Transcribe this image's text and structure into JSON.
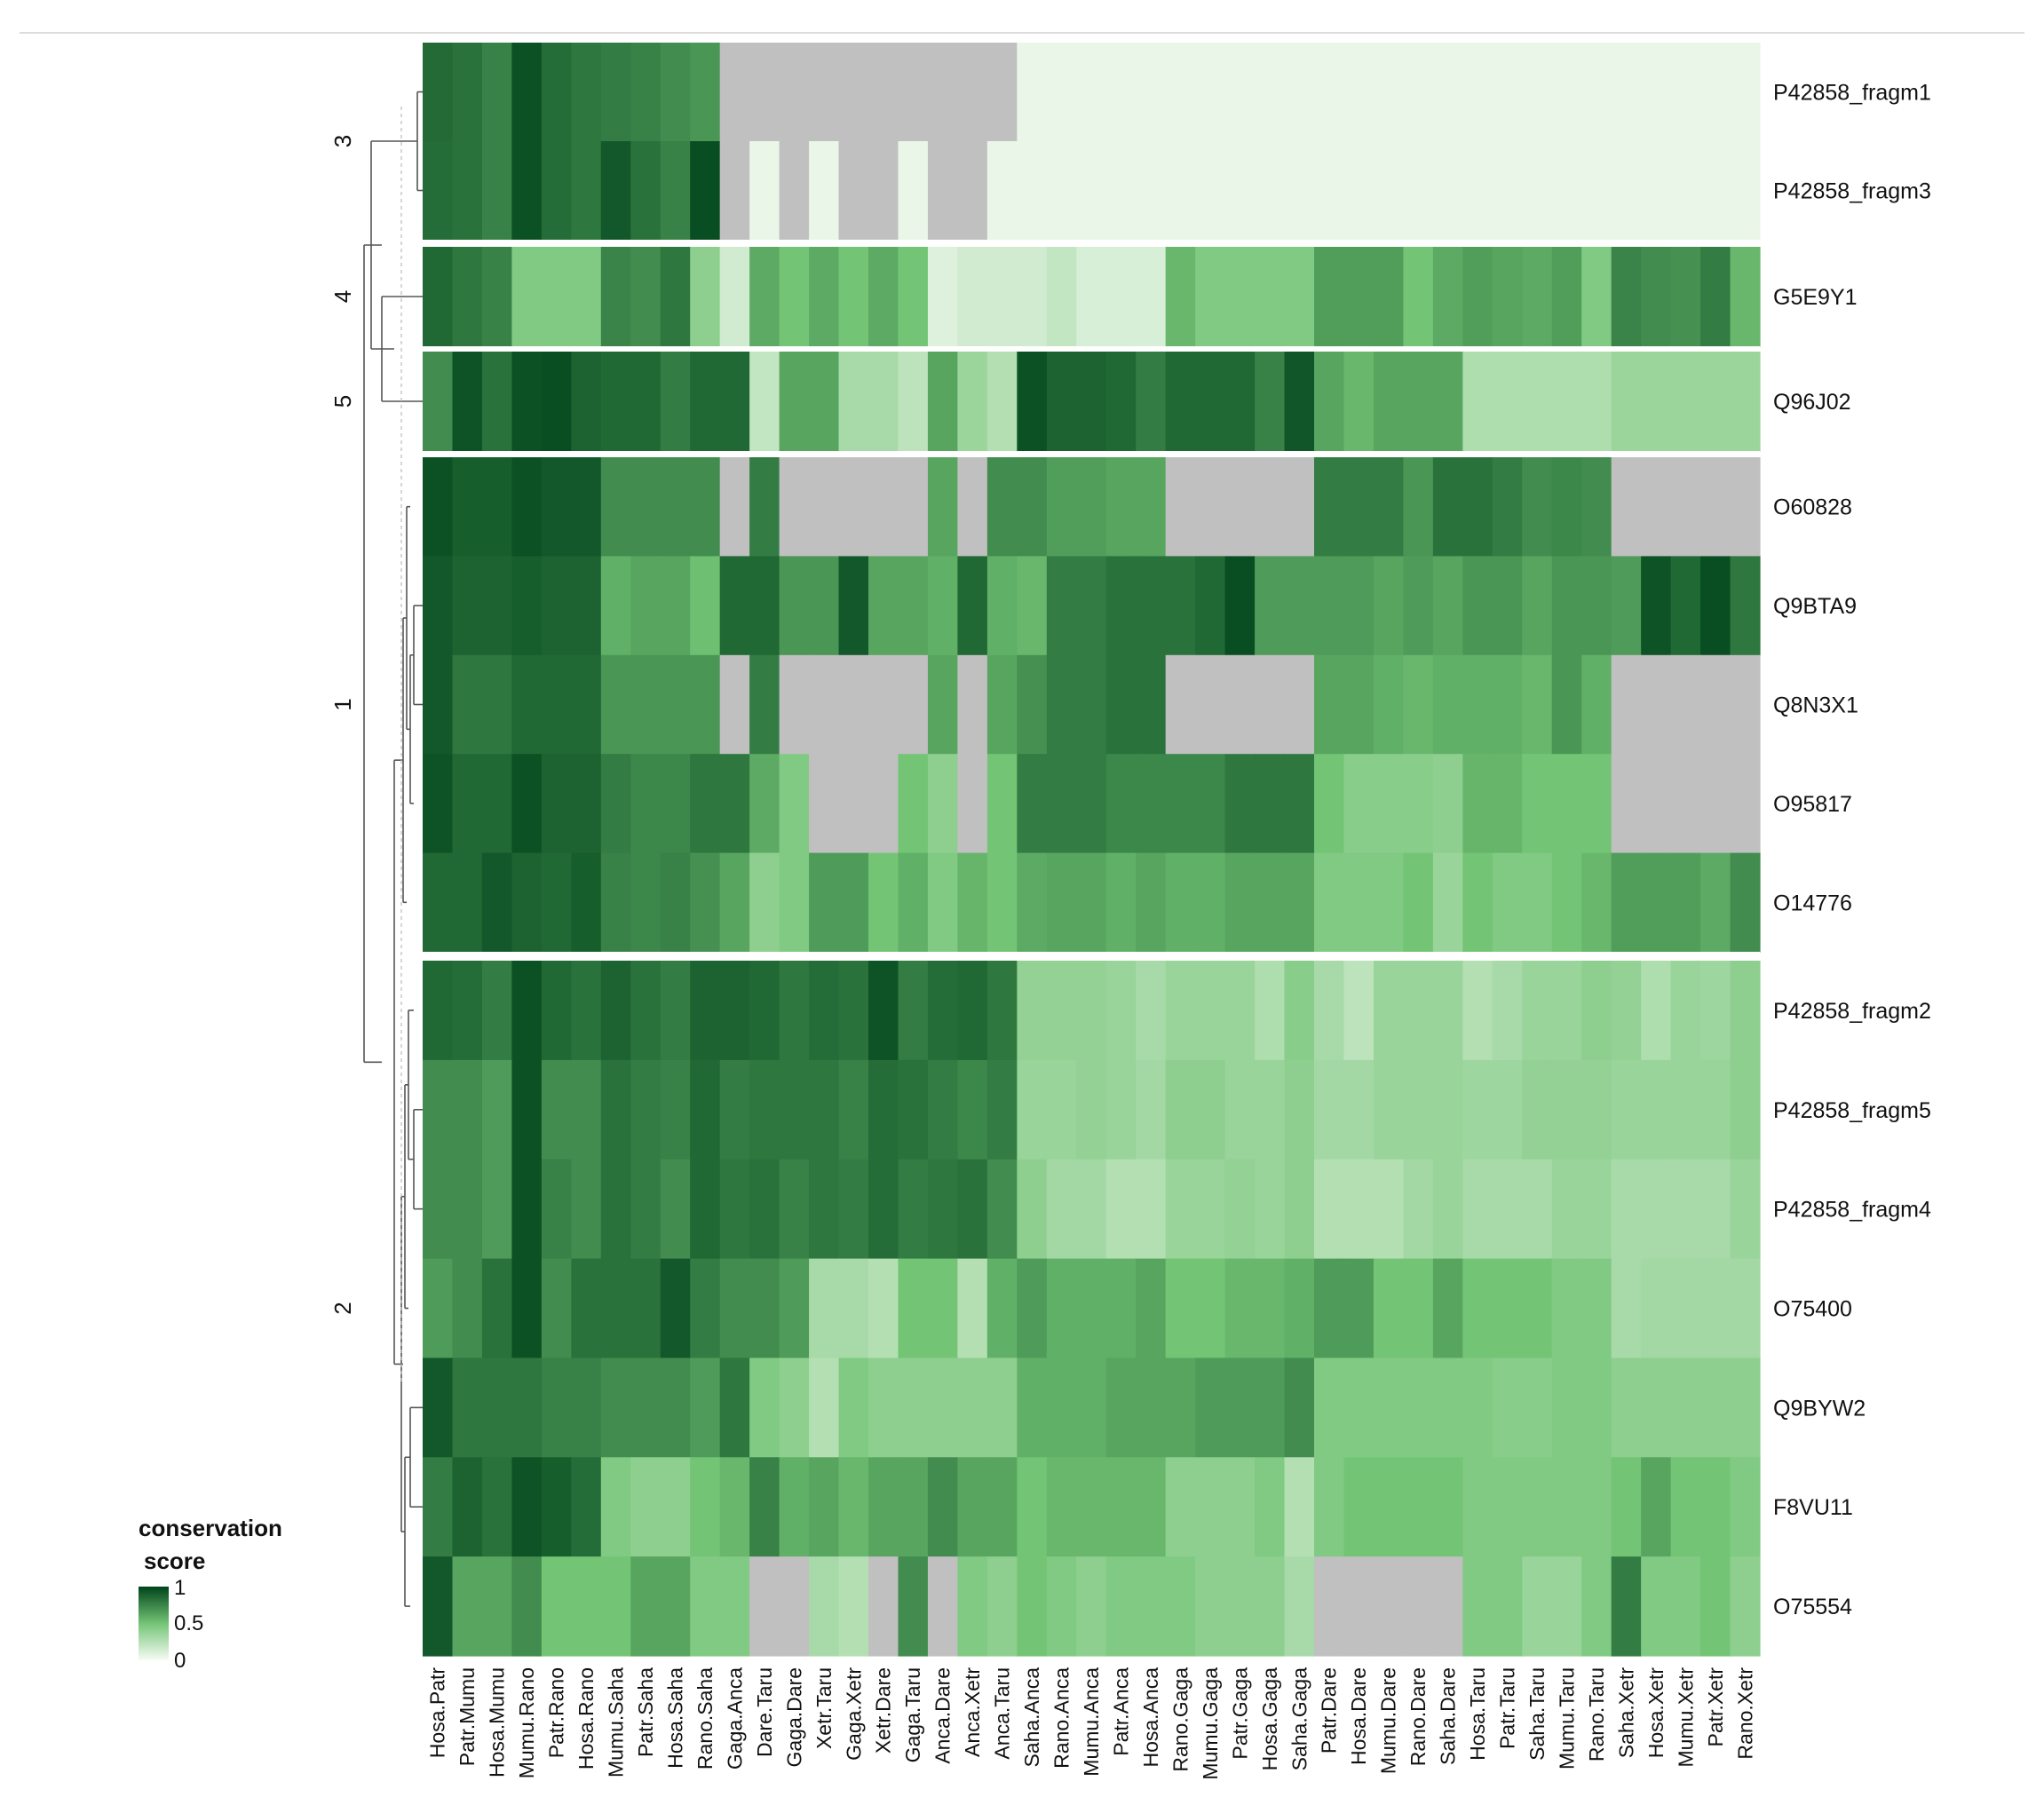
{
  "chart_data": {
    "type": "heatmap",
    "title": "",
    "xlabel": "",
    "ylabel": "",
    "na_color": "#c0c0c0",
    "color_scale": {
      "low": "#f7fcf5",
      "mid": "#74c476",
      "high": "#00441b"
    },
    "legend": {
      "title_line1": "conservation",
      "title_line2": "score",
      "ticks": [
        "1",
        "0.5",
        "0"
      ],
      "position": "bottom-left"
    },
    "columns": [
      "Hosa.Patr",
      "Patr.Mumu",
      "Hosa.Mumu",
      "Mumu.Rano",
      "Patr.Rano",
      "Hosa.Rano",
      "Mumu.Saha",
      "Patr.Saha",
      "Hosa.Saha",
      "Rano.Saha",
      "Gaga.Anca",
      "Dare.Taru",
      "Gaga.Dare",
      "Xetr.Taru",
      "Gaga.Xetr",
      "Xetr.Dare",
      "Gaga.Taru",
      "Anca.Dare",
      "Anca.Xetr",
      "Anca.Taru",
      "Saha.Anca",
      "Rano.Anca",
      "Mumu.Anca",
      "Patr.Anca",
      "Hosa.Anca",
      "Rano.Gaga",
      "Mumu.Gaga",
      "Patr.Gaga",
      "Hosa.Gaga",
      "Saha.Gaga",
      "Patr.Dare",
      "Hosa.Dare",
      "Mumu.Dare",
      "Rano.Dare",
      "Saha.Dare",
      "Hosa.Taru",
      "Patr.Taru",
      "Saha.Taru",
      "Mumu.Taru",
      "Rano.Taru",
      "Saha.Xetr",
      "Hosa.Xetr",
      "Mumu.Xetr",
      "Patr.Xetr",
      "Rano.Xetr"
    ],
    "row_clusters": [
      {
        "label": "3",
        "rows": [
          {
            "name": "P42858_fragm1",
            "values": [
              0.85,
              0.82,
              0.76,
              0.95,
              0.84,
              0.8,
              0.78,
              0.76,
              0.72,
              0.68,
              null,
              null,
              null,
              null,
              null,
              null,
              null,
              null,
              null,
              null,
              0.05,
              0.05,
              0.05,
              0.05,
              0.05,
              0.05,
              0.05,
              0.05,
              0.05,
              0.05,
              0.05,
              0.05,
              0.05,
              0.05,
              0.05,
              0.05,
              0.05,
              0.05,
              0.05,
              0.05,
              0.05,
              0.05,
              0.05,
              0.05,
              0.05
            ]
          },
          {
            "name": "P42858_fragm3",
            "values": [
              0.84,
              0.82,
              0.76,
              0.95,
              0.84,
              0.8,
              0.92,
              0.82,
              0.76,
              0.96,
              null,
              0.05,
              null,
              0.05,
              null,
              null,
              0.05,
              null,
              null,
              0.05,
              0.05,
              0.05,
              0.05,
              0.05,
              0.05,
              0.05,
              0.05,
              0.05,
              0.05,
              0.05,
              0.05,
              0.05,
              0.05,
              0.05,
              0.05,
              0.05,
              0.05,
              0.05,
              0.05,
              0.05,
              0.05,
              0.05,
              0.05,
              0.05,
              0.05
            ]
          }
        ]
      },
      {
        "label": "4",
        "rows": [
          {
            "name": "G5E9Y1",
            "values": [
              0.86,
              0.8,
              0.76,
              0.45,
              0.45,
              0.45,
              0.75,
              0.72,
              0.8,
              0.4,
              0.15,
              0.6,
              0.5,
              0.6,
              0.5,
              0.6,
              0.5,
              0.1,
              0.15,
              0.15,
              0.15,
              0.2,
              0.12,
              0.12,
              0.12,
              0.55,
              0.45,
              0.45,
              0.45,
              0.45,
              0.65,
              0.65,
              0.65,
              0.5,
              0.6,
              0.65,
              0.62,
              0.6,
              0.65,
              0.45,
              0.75,
              0.72,
              0.7,
              0.78,
              0.55
            ]
          }
        ]
      },
      {
        "label": "5",
        "rows": [
          {
            "name": "Q96J02",
            "values": [
              0.72,
              0.94,
              0.82,
              0.95,
              0.96,
              0.88,
              0.86,
              0.86,
              0.78,
              0.86,
              0.86,
              0.2,
              0.62,
              0.62,
              0.3,
              0.3,
              0.22,
              0.62,
              0.35,
              0.26,
              0.95,
              0.88,
              0.88,
              0.86,
              0.78,
              0.86,
              0.86,
              0.86,
              0.76,
              0.93,
              0.62,
              0.55,
              0.62,
              0.62,
              0.62,
              0.28,
              0.28,
              0.28,
              0.28,
              0.28,
              0.35,
              0.35,
              0.35,
              0.35,
              0.35
            ]
          }
        ]
      },
      {
        "label": "1",
        "rows": [
          {
            "name": "O60828",
            "values": [
              0.95,
              0.9,
              0.9,
              0.95,
              0.92,
              0.92,
              0.72,
              0.72,
              0.72,
              0.72,
              null,
              0.78,
              null,
              null,
              null,
              null,
              null,
              0.62,
              null,
              0.72,
              0.72,
              0.65,
              0.65,
              0.62,
              0.62,
              null,
              null,
              null,
              null,
              null,
              0.78,
              0.78,
              0.78,
              0.68,
              0.82,
              0.82,
              0.78,
              0.72,
              0.74,
              0.72,
              null,
              null,
              null,
              null,
              null
            ]
          },
          {
            "name": "Q9BTA9",
            "values": [
              0.92,
              0.88,
              0.88,
              0.9,
              0.88,
              0.88,
              0.58,
              0.62,
              0.62,
              0.52,
              0.86,
              0.86,
              0.68,
              0.68,
              0.92,
              0.62,
              0.62,
              0.58,
              0.86,
              0.58,
              0.55,
              0.78,
              0.78,
              0.82,
              0.82,
              0.82,
              0.86,
              0.96,
              0.66,
              0.66,
              0.66,
              0.66,
              0.62,
              0.66,
              0.62,
              0.68,
              0.68,
              0.62,
              0.68,
              0.68,
              0.66,
              0.94,
              0.86,
              0.96,
              0.8
            ]
          },
          {
            "name": "Q8N3X1",
            "values": [
              0.92,
              0.8,
              0.8,
              0.86,
              0.86,
              0.86,
              0.68,
              0.68,
              0.68,
              0.68,
              null,
              0.78,
              null,
              null,
              null,
              null,
              null,
              0.62,
              null,
              0.62,
              0.7,
              0.78,
              0.78,
              0.82,
              0.82,
              null,
              null,
              null,
              null,
              null,
              0.62,
              0.62,
              0.58,
              0.55,
              0.58,
              0.58,
              0.58,
              0.55,
              0.68,
              0.58,
              null,
              null,
              null,
              null,
              null
            ]
          },
          {
            "name": "O95817",
            "values": [
              0.94,
              0.86,
              0.86,
              0.95,
              0.88,
              0.88,
              0.78,
              0.74,
              0.74,
              0.8,
              0.8,
              0.6,
              0.45,
              null,
              null,
              null,
              0.5,
              0.4,
              null,
              0.5,
              0.78,
              0.78,
              0.78,
              0.74,
              0.74,
              0.74,
              0.74,
              0.8,
              0.8,
              0.8,
              0.5,
              0.42,
              0.42,
              0.42,
              0.4,
              0.56,
              0.56,
              0.5,
              0.5,
              0.5,
              null,
              null,
              null,
              null,
              null
            ]
          },
          {
            "name": "O14776",
            "values": [
              0.86,
              0.86,
              0.92,
              0.88,
              0.86,
              0.9,
              0.76,
              0.74,
              0.76,
              0.7,
              0.62,
              0.4,
              0.45,
              0.66,
              0.66,
              0.5,
              0.58,
              0.45,
              0.56,
              0.5,
              0.6,
              0.62,
              0.62,
              0.58,
              0.62,
              0.58,
              0.58,
              0.62,
              0.62,
              0.62,
              0.45,
              0.45,
              0.45,
              0.5,
              0.36,
              0.5,
              0.45,
              0.45,
              0.5,
              0.55,
              0.65,
              0.65,
              0.65,
              0.6,
              0.72
            ]
          }
        ]
      },
      {
        "label": "2",
        "rows": [
          {
            "name": "P42858_fragm2",
            "values": [
              0.86,
              0.84,
              0.78,
              0.95,
              0.86,
              0.82,
              0.88,
              0.82,
              0.78,
              0.88,
              0.88,
              0.86,
              0.8,
              0.84,
              0.82,
              0.94,
              0.78,
              0.84,
              0.86,
              0.8,
              0.38,
              0.38,
              0.38,
              0.36,
              0.3,
              0.36,
              0.36,
              0.36,
              0.28,
              0.42,
              0.3,
              0.22,
              0.36,
              0.36,
              0.36,
              0.26,
              0.3,
              0.36,
              0.36,
              0.4,
              0.38,
              0.28,
              0.36,
              0.34,
              0.4
            ]
          },
          {
            "name": "P42858_fragm5",
            "values": [
              0.72,
              0.72,
              0.66,
              0.95,
              0.72,
              0.72,
              0.82,
              0.78,
              0.76,
              0.86,
              0.78,
              0.8,
              0.8,
              0.8,
              0.76,
              0.84,
              0.82,
              0.78,
              0.74,
              0.78,
              0.36,
              0.36,
              0.38,
              0.36,
              0.32,
              0.4,
              0.4,
              0.36,
              0.36,
              0.4,
              0.32,
              0.32,
              0.36,
              0.36,
              0.36,
              0.34,
              0.34,
              0.38,
              0.38,
              0.38,
              0.36,
              0.36,
              0.36,
              0.36,
              0.4
            ]
          },
          {
            "name": "P42858_fragm4",
            "values": [
              0.72,
              0.72,
              0.66,
              0.95,
              0.76,
              0.72,
              0.82,
              0.78,
              0.72,
              0.86,
              0.8,
              0.82,
              0.76,
              0.8,
              0.78,
              0.84,
              0.78,
              0.8,
              0.82,
              0.72,
              0.4,
              0.32,
              0.32,
              0.26,
              0.26,
              0.36,
              0.36,
              0.38,
              0.36,
              0.4,
              0.26,
              0.26,
              0.26,
              0.32,
              0.36,
              0.3,
              0.3,
              0.3,
              0.36,
              0.36,
              0.3,
              0.3,
              0.3,
              0.3,
              0.36
            ]
          },
          {
            "name": "O75400",
            "values": [
              0.66,
              0.72,
              0.82,
              0.95,
              0.72,
              0.82,
              0.82,
              0.82,
              0.92,
              0.78,
              0.72,
              0.72,
              0.66,
              0.3,
              0.3,
              0.26,
              0.5,
              0.5,
              0.26,
              0.58,
              0.66,
              0.58,
              0.58,
              0.58,
              0.62,
              0.5,
              0.5,
              0.55,
              0.55,
              0.58,
              0.66,
              0.66,
              0.5,
              0.5,
              0.62,
              0.5,
              0.5,
              0.5,
              0.45,
              0.45,
              0.3,
              0.32,
              0.32,
              0.32,
              0.32
            ]
          },
          {
            "name": "Q9BYW2",
            "values": [
              0.92,
              0.8,
              0.8,
              0.8,
              0.76,
              0.76,
              0.72,
              0.72,
              0.72,
              0.66,
              0.8,
              0.45,
              0.4,
              0.26,
              0.45,
              0.4,
              0.4,
              0.4,
              0.4,
              0.4,
              0.58,
              0.58,
              0.58,
              0.62,
              0.62,
              0.62,
              0.66,
              0.66,
              0.66,
              0.72,
              0.45,
              0.45,
              0.45,
              0.45,
              0.45,
              0.45,
              0.42,
              0.42,
              0.45,
              0.45,
              0.4,
              0.4,
              0.4,
              0.4,
              0.4
            ]
          },
          {
            "name": "F8VU11",
            "values": [
              0.78,
              0.88,
              0.82,
              0.94,
              0.9,
              0.84,
              0.45,
              0.4,
              0.4,
              0.5,
              0.55,
              0.76,
              0.58,
              0.62,
              0.55,
              0.62,
              0.62,
              0.72,
              0.62,
              0.62,
              0.5,
              0.55,
              0.55,
              0.55,
              0.55,
              0.4,
              0.4,
              0.4,
              0.45,
              0.26,
              0.45,
              0.5,
              0.5,
              0.5,
              0.5,
              0.45,
              0.45,
              0.45,
              0.45,
              0.45,
              0.5,
              0.62,
              0.5,
              0.5,
              0.45
            ]
          },
          {
            "name": "O75554",
            "values": [
              0.92,
              0.62,
              0.62,
              0.72,
              0.5,
              0.5,
              0.5,
              0.62,
              0.62,
              0.45,
              0.45,
              null,
              null,
              0.3,
              0.26,
              null,
              0.72,
              null,
              0.45,
              0.4,
              0.5,
              0.45,
              0.4,
              0.45,
              0.45,
              0.45,
              0.4,
              0.4,
              0.4,
              0.3,
              null,
              null,
              null,
              null,
              null,
              0.45,
              0.45,
              0.36,
              0.36,
              0.45,
              0.78,
              0.45,
              0.45,
              0.5,
              0.4
            ]
          }
        ]
      }
    ]
  }
}
